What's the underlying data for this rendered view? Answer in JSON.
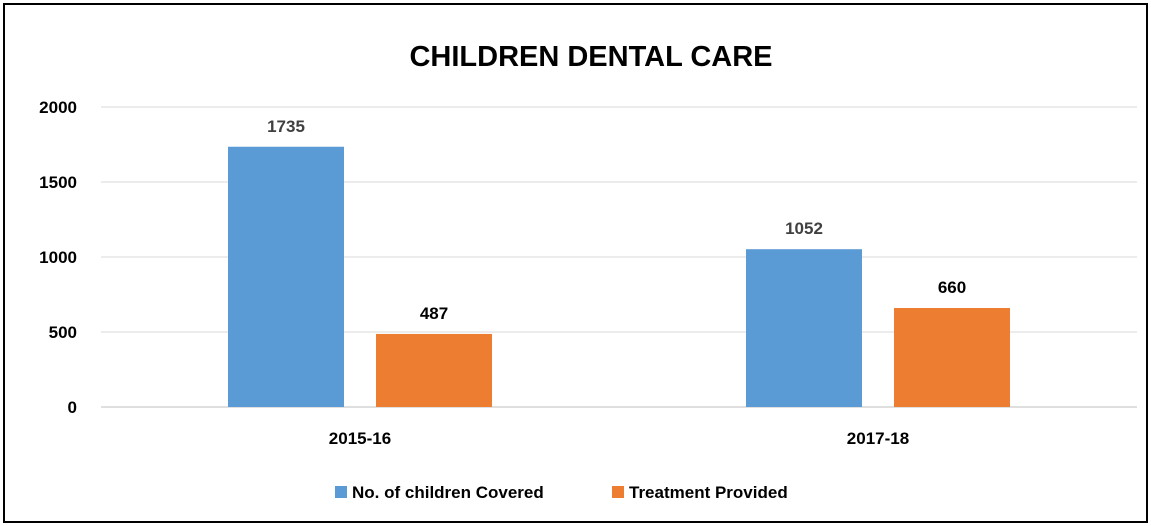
{
  "chart_data": {
    "type": "bar",
    "title": "CHILDREN DENTAL CARE",
    "xlabel": "",
    "ylabel": "",
    "categories": [
      "2015-16",
      "2017-18"
    ],
    "series": [
      {
        "name": "No. of children Covered",
        "values": [
          1735,
          1052
        ],
        "color": "#5b9bd5"
      },
      {
        "name": "Treatment Provided",
        "values": [
          487,
          660
        ],
        "color": "#ed7d31"
      }
    ],
    "ylim": [
      0,
      2000
    ],
    "yticks": [
      "0",
      "500",
      "1000",
      "1500",
      "2000"
    ],
    "grid": true,
    "legend": "bottom"
  }
}
